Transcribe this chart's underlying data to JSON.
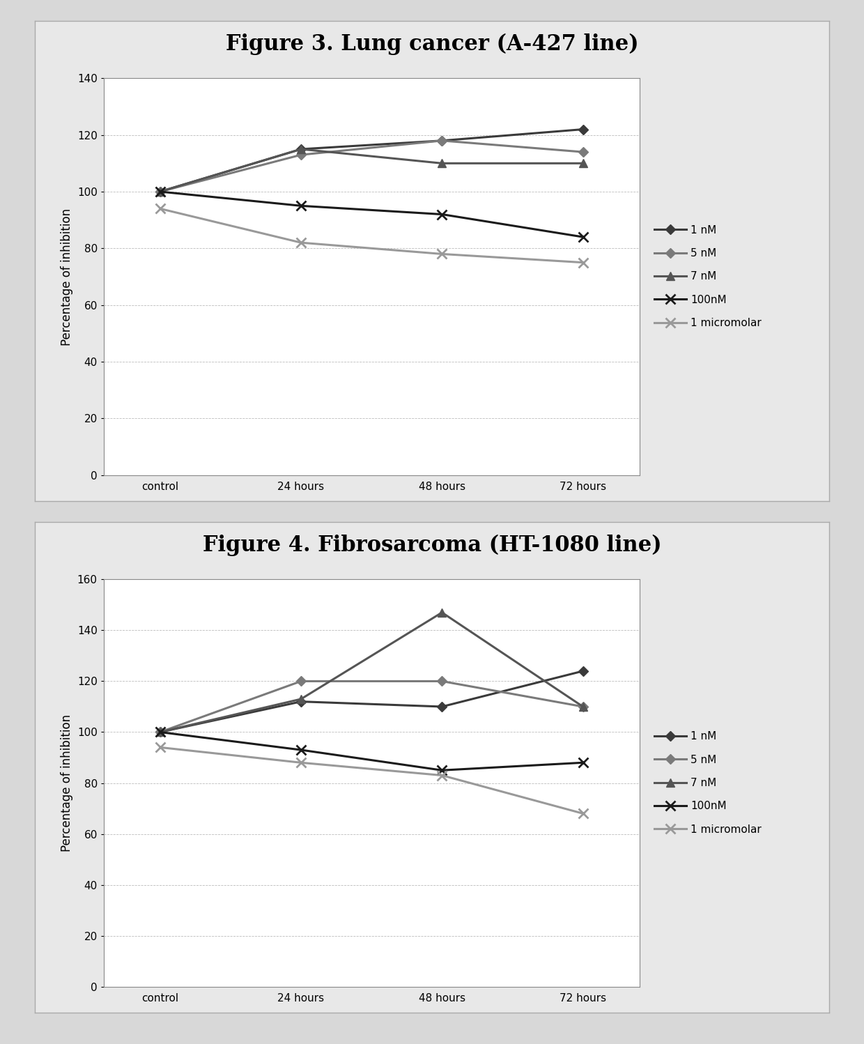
{
  "fig1": {
    "title": "Figure 3. Lung cancer (A-427 line)",
    "ylabel": "Percentage of inhibition",
    "x_labels": [
      "control",
      "24 hours",
      "48 hours",
      "72 hours"
    ],
    "ylim": [
      0,
      140
    ],
    "yticks": [
      0,
      20,
      40,
      60,
      80,
      100,
      120,
      140
    ],
    "series": [
      {
        "label": "1 nM",
        "values": [
          100,
          115,
          118,
          122
        ],
        "color": "#3a3a3a",
        "marker": "D",
        "lw": 2.2
      },
      {
        "label": "5 nM",
        "values": [
          100,
          113,
          118,
          114
        ],
        "color": "#7a7a7a",
        "marker": "D",
        "lw": 2.2
      },
      {
        "label": "7 nM",
        "values": [
          100,
          115,
          110,
          110
        ],
        "color": "#555555",
        "marker": "^",
        "lw": 2.2
      },
      {
        "label": "100nM",
        "values": [
          100,
          95,
          92,
          84
        ],
        "color": "#1a1a1a",
        "marker": "x",
        "lw": 2.2
      },
      {
        "label": "1 micromolar",
        "values": [
          94,
          82,
          78,
          75
        ],
        "color": "#999999",
        "marker": "x",
        "lw": 2.2
      }
    ]
  },
  "fig2": {
    "title": "Figure 4. Fibrosarcoma (HT-1080 line)",
    "ylabel": "Percentage of inhibition",
    "x_labels": [
      "control",
      "24 hours",
      "48 hours",
      "72 hours"
    ],
    "ylim": [
      0,
      160
    ],
    "yticks": [
      0,
      20,
      40,
      60,
      80,
      100,
      120,
      140,
      160
    ],
    "series": [
      {
        "label": "1 nM",
        "values": [
          100,
          112,
          110,
          124
        ],
        "color": "#3a3a3a",
        "marker": "D",
        "lw": 2.2
      },
      {
        "label": "5 nM",
        "values": [
          100,
          120,
          120,
          110
        ],
        "color": "#7a7a7a",
        "marker": "D",
        "lw": 2.2
      },
      {
        "label": "7 nM",
        "values": [
          100,
          113,
          147,
          110
        ],
        "color": "#555555",
        "marker": "^",
        "lw": 2.2
      },
      {
        "label": "100nM",
        "values": [
          100,
          93,
          85,
          88
        ],
        "color": "#1a1a1a",
        "marker": "x",
        "lw": 2.2
      },
      {
        "label": "1 micromolar",
        "values": [
          94,
          88,
          83,
          68
        ],
        "color": "#999999",
        "marker": "x",
        "lw": 2.2
      }
    ]
  },
  "bg_white": "#ffffff",
  "bg_outer": "#e8e8e8",
  "bg_page": "#d8d8d8",
  "grid_color": "#bbbbbb",
  "box_edge_color": "#aaaaaa",
  "title_fontsize": 22,
  "axis_label_fontsize": 12,
  "tick_fontsize": 11,
  "legend_fontsize": 11
}
